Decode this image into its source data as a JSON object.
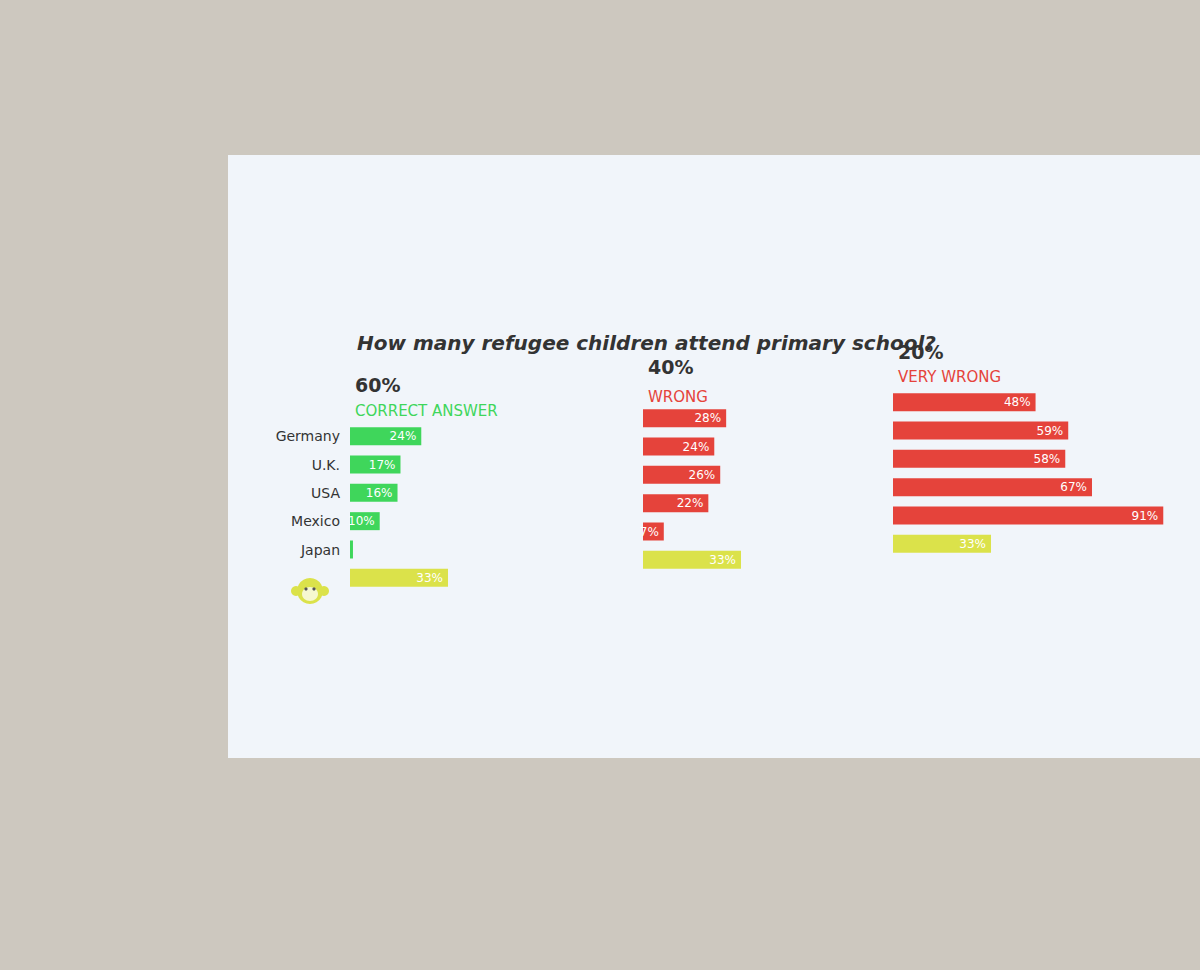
{
  "title": "How many refugee children attend primary school?",
  "chart_data": [
    {
      "type": "bar",
      "title": "60%",
      "subtitle": "CORRECT ANSWER",
      "orientation": "horizontal",
      "categories": [
        "Germany",
        "U.K.",
        "USA",
        "Mexico",
        "Japan",
        null
      ],
      "values": [
        24,
        17,
        16,
        10,
        1,
        33
      ],
      "value_labels": [
        "24%",
        "17%",
        "16%",
        "10%",
        null,
        "33%"
      ],
      "colors": [
        "#3fd65b",
        "#3fd65b",
        "#3fd65b",
        "#3fd65b",
        "#3fd65b",
        "#dbe24a"
      ],
      "xlim": [
        0,
        100
      ],
      "data_labels": true,
      "tick_labels": "y",
      "grid": false
    },
    {
      "type": "bar",
      "title": "40%",
      "subtitle": "WRONG",
      "orientation": "horizontal",
      "categories": [
        "Germany",
        "U.K.",
        "USA",
        "Mexico",
        "Japan",
        null
      ],
      "values": [
        28,
        24,
        26,
        22,
        7,
        33
      ],
      "value_labels": [
        "28%",
        "24%",
        "26%",
        "22%",
        "7%",
        "33%"
      ],
      "colors": [
        "#e5433b",
        "#e5433b",
        "#e5433b",
        "#e5433b",
        "#e5433b",
        "#dbe24a"
      ],
      "xlim": [
        0,
        100
      ],
      "data_labels": true,
      "tick_labels": false,
      "grid": false
    },
    {
      "type": "bar",
      "title": "20%",
      "subtitle": "VERY WRONG",
      "orientation": "horizontal",
      "categories": [
        "Germany",
        "U.K.",
        "USA",
        "Mexico",
        "Japan",
        null
      ],
      "values": [
        48,
        59,
        58,
        67,
        91,
        33
      ],
      "value_labels": [
        "48%",
        "59%",
        "58%",
        "67%",
        "91%",
        "33%"
      ],
      "colors": [
        "#e5433b",
        "#e5433b",
        "#e5433b",
        "#e5433b",
        "#e5433b",
        "#dbe24a"
      ],
      "xlim": [
        0,
        100
      ],
      "data_labels": true,
      "tick_labels": false,
      "grid": false
    }
  ]
}
